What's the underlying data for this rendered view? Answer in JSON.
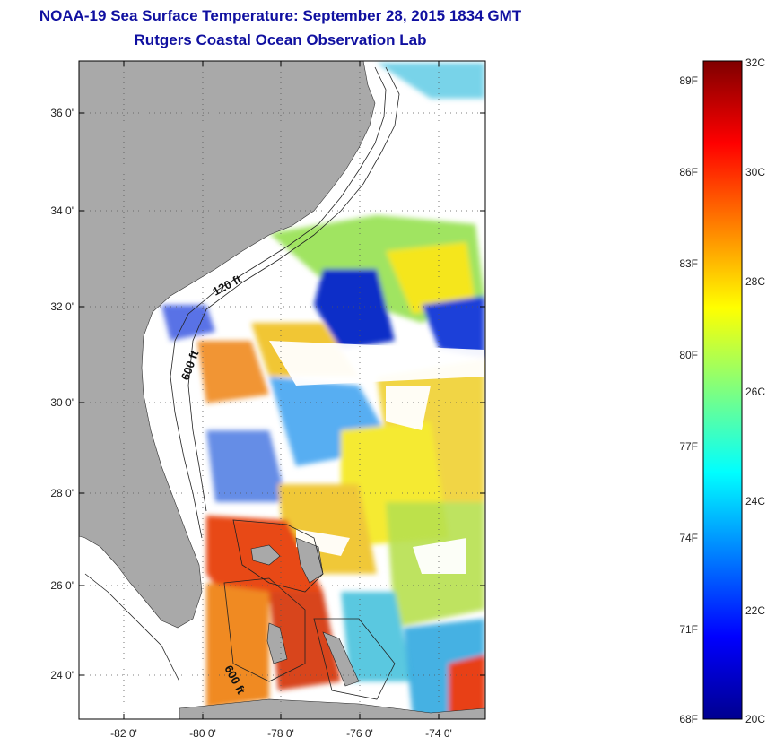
{
  "title": "NOAA-19 Sea Surface Temperature:  September 28, 2015 1834 GMT",
  "subtitle": "Rutgers Coastal Ocean Observation Lab",
  "map": {
    "lat_ticks": [
      "36 0'",
      "34 0'",
      "32 0'",
      "30 0'",
      "28 0'",
      "26 0'",
      "24 0'"
    ],
    "lon_ticks": [
      "-82 0'",
      "-80 0'",
      "-78 0'",
      "-76 0'",
      "-74 0'"
    ],
    "contour_labels": [
      "120 ft",
      "600 ft",
      "600 ft"
    ],
    "land_color": "#a9a9a9",
    "cloud_color": "#ffffff"
  },
  "colorbar": {
    "fahrenheit": [
      "89F",
      "86F",
      "83F",
      "80F",
      "77F",
      "74F",
      "71F",
      "68F"
    ],
    "celsius": [
      "32C",
      "30C",
      "28C",
      "26C",
      "24C",
      "22C",
      "20C"
    ],
    "min_c": 20,
    "max_c": 32
  }
}
